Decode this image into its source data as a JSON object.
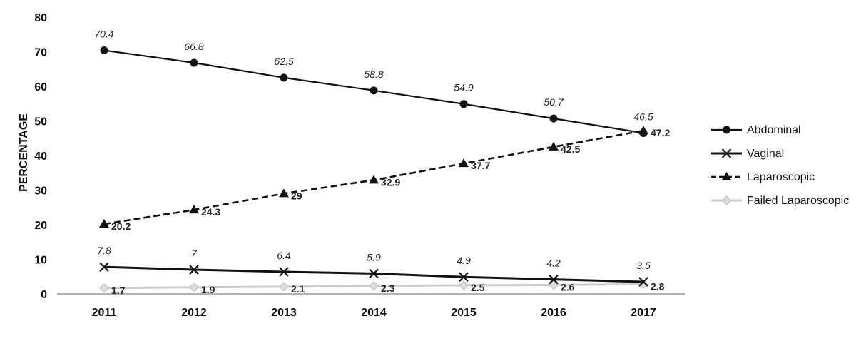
{
  "chart_data": {
    "type": "line",
    "title": "",
    "xlabel": "",
    "ylabel": "PERCENTAGE",
    "ylim": [
      0,
      80
    ],
    "yticks": [
      0,
      10,
      20,
      30,
      40,
      50,
      60,
      70,
      80
    ],
    "grid": false,
    "legend_position": "right",
    "categories": [
      "2011",
      "2012",
      "2013",
      "2014",
      "2015",
      "2016",
      "2017"
    ],
    "series": [
      {
        "name": "Abdominal",
        "values": [
          70.4,
          66.8,
          62.5,
          58.8,
          54.9,
          50.7,
          46.5
        ],
        "labels": [
          "70.4",
          "66.8",
          "62.5",
          "58.8",
          "54.9",
          "50.7",
          "46.5"
        ],
        "color": "#111111",
        "marker": "circle",
        "dash": "solid"
      },
      {
        "name": "Vaginal",
        "values": [
          7.8,
          7,
          6.4,
          5.9,
          4.9,
          4.2,
          3.5
        ],
        "labels": [
          "7.8",
          "7",
          "6.4",
          "5.9",
          "4.9",
          "4.2",
          "3.5"
        ],
        "color": "#111111",
        "marker": "x",
        "dash": "solid"
      },
      {
        "name": "Laparoscopic",
        "values": [
          20.2,
          24.3,
          29,
          32.9,
          37.7,
          42.5,
          47.2
        ],
        "labels": [
          "20.2",
          "24.3",
          "29",
          "32.9",
          "37.7",
          "42.5",
          "47.2"
        ],
        "color": "#111111",
        "marker": "triangle",
        "dash": "dashed"
      },
      {
        "name": "Failed Laparoscopic",
        "values": [
          1.7,
          1.9,
          2.1,
          2.3,
          2.5,
          2.6,
          2.8
        ],
        "labels": [
          "1.7",
          "1.9",
          "2.1",
          "2.3",
          "2.5",
          "2.6",
          "2.8"
        ],
        "color": "#cccccc",
        "marker": "diamond",
        "dash": "solid"
      }
    ]
  }
}
